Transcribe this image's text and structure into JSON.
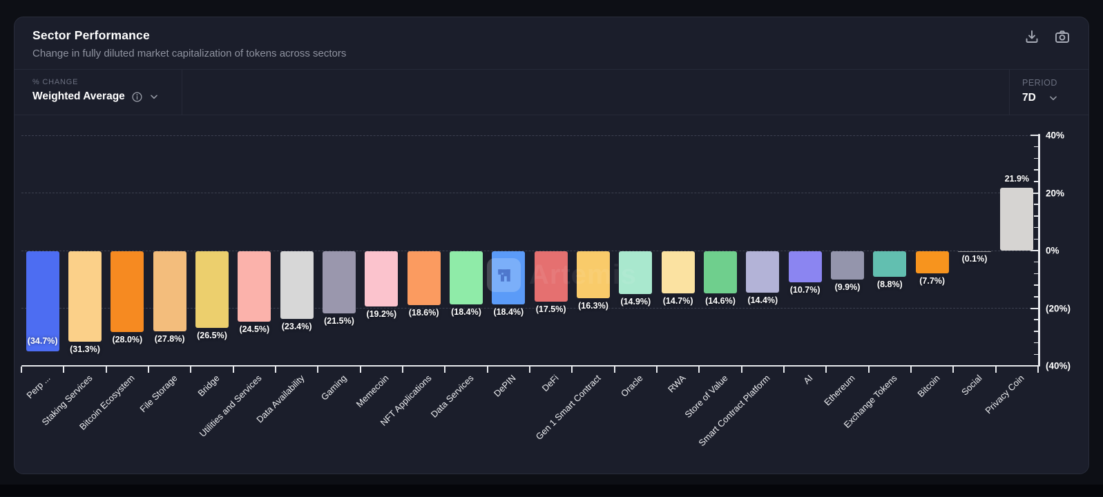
{
  "header": {
    "title": "Sector Performance",
    "subtitle": "Change in fully diluted market capitalization of tokens across sectors"
  },
  "toolbar": {
    "icons": [
      "download-icon",
      "camera-icon"
    ]
  },
  "controls": {
    "metric_label": "% CHANGE",
    "metric_value": "Weighted Average",
    "period_label": "PERIOD",
    "period_value": "7D"
  },
  "watermark": {
    "text": "Artemis",
    "logo": "artemis-logo"
  },
  "chart_data": {
    "type": "bar",
    "title": "Sector Performance",
    "subtitle": "Change in fully diluted market capitalization of tokens across sectors",
    "xlabel": "",
    "ylabel": "% change (7D, weighted average)",
    "ylim": [
      -40,
      40
    ],
    "y_ticks": [
      "40%",
      "20%",
      "0%",
      "(20%)",
      "(40%)"
    ],
    "y_tick_values": [
      40,
      20,
      0,
      -20,
      -40
    ],
    "grid": "horizontal dashed at 40, 20, 0, -20",
    "legend_position": "none",
    "y_axis_side": "right",
    "categories": [
      "Perp ...",
      "Staking Services",
      "Bitcoin Ecosystem",
      "File Storage",
      "Bridge",
      "Utilities and Services",
      "Data Availability",
      "Gaming",
      "Memecoin",
      "NFT Applications",
      "Data Services",
      "DePIN",
      "DeFi",
      "Gen 1 Smart Contract",
      "Oracle",
      "RWA",
      "Store of Value",
      "Smart Contract Platform",
      "AI",
      "Ethereum",
      "Exchange Tokens",
      "Bitcoin",
      "Social",
      "Privacy Coin"
    ],
    "values": [
      -34.7,
      -31.3,
      -28.0,
      -27.8,
      -26.5,
      -24.5,
      -23.4,
      -21.5,
      -19.2,
      -18.6,
      -18.4,
      -18.4,
      -17.5,
      -16.3,
      -14.9,
      -14.7,
      -14.6,
      -14.4,
      -10.7,
      -9.9,
      -8.8,
      -7.7,
      -0.1,
      21.9
    ],
    "value_labels": [
      "(34.7%)",
      "(31.3%)",
      "(28.0%)",
      "(27.8%)",
      "(26.5%)",
      "(24.5%)",
      "(23.4%)",
      "(21.5%)",
      "(19.2%)",
      "(18.6%)",
      "(18.4%)",
      "(18.4%)",
      "(17.5%)",
      "(16.3%)",
      "(14.9%)",
      "(14.7%)",
      "(14.6%)",
      "(14.4%)",
      "(10.7%)",
      "(9.9%)",
      "(8.8%)",
      "(7.7%)",
      "(0.1%)",
      "21.9%"
    ],
    "colors": [
      "#4D6DF2",
      "#FBD089",
      "#F68A21",
      "#F3BD7C",
      "#ECCF6D",
      "#FBB2AB",
      "#D7D7D7",
      "#9A97AD",
      "#FBC3CD",
      "#FB9B60",
      "#8FEBA8",
      "#5B9BF8",
      "#E57070",
      "#F9CB6A",
      "#A9E8CE",
      "#FBE2A1",
      "#6FCF8D",
      "#B3B3D7",
      "#8B85F1",
      "#9495AC",
      "#62BFB0",
      "#F7941E",
      "#9A9A9A",
      "#D6D4D2"
    ]
  }
}
